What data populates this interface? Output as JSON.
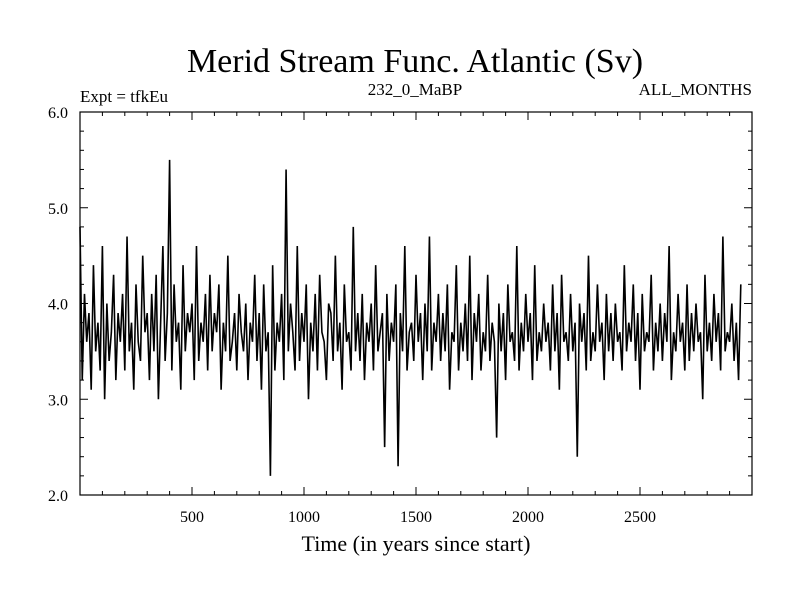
{
  "chart_data": {
    "type": "line",
    "title": "Merid Stream Func. Atlantic (Sv)",
    "subtitle_left": "Expt = tfkEu",
    "subtitle_center": "232_0_MaBP",
    "subtitle_right": "ALL_MONTHS",
    "xlabel": "Time (in years since start)",
    "ylabel": "",
    "xlim": [
      0,
      3000
    ],
    "ylim": [
      2.0,
      6.0
    ],
    "x_ticks": [
      500,
      1000,
      1500,
      2000,
      2500
    ],
    "x_tick_labels": [
      "500",
      "1000",
      "1500",
      "2000",
      "2500"
    ],
    "y_ticks": [
      2.0,
      3.0,
      4.0,
      5.0,
      6.0
    ],
    "y_tick_labels": [
      "2.0",
      "3.0",
      "4.0",
      "5.0",
      "6.0"
    ],
    "grid": false,
    "line_color": "#000000",
    "series": [
      {
        "x_start": 0,
        "x_step": 10,
        "values": [
          4.8,
          3.2,
          4.1,
          3.6,
          3.9,
          3.1,
          4.4,
          3.5,
          3.8,
          3.3,
          4.6,
          3.0,
          4.0,
          3.4,
          3.7,
          4.3,
          3.2,
          3.9,
          3.6,
          4.1,
          3.3,
          4.7,
          3.5,
          3.8,
          3.1,
          4.2,
          3.6,
          3.4,
          4.5,
          3.7,
          3.9,
          3.2,
          4.1,
          3.5,
          4.3,
          3.0,
          3.8,
          4.6,
          3.4,
          3.9,
          5.5,
          3.3,
          4.2,
          3.6,
          3.8,
          3.1,
          4.4,
          3.5,
          3.9,
          3.7,
          4.0,
          3.2,
          4.6,
          3.4,
          3.8,
          3.6,
          4.1,
          3.3,
          4.3,
          3.5,
          3.9,
          3.7,
          4.2,
          3.1,
          3.8,
          3.5,
          4.5,
          3.4,
          3.6,
          3.9,
          3.3,
          4.1,
          3.7,
          3.5,
          4.0,
          3.2,
          3.8,
          3.6,
          4.3,
          3.4,
          3.9,
          3.1,
          4.2,
          3.5,
          3.7,
          2.2,
          4.4,
          3.3,
          3.8,
          3.6,
          4.1,
          3.2,
          5.4,
          3.5,
          4.0,
          3.7,
          3.3,
          4.6,
          3.4,
          3.9,
          3.6,
          4.2,
          3.0,
          3.8,
          3.5,
          4.1,
          3.3,
          4.3,
          3.7,
          3.6,
          3.2,
          4.0,
          3.9,
          3.4,
          4.5,
          3.5,
          3.8,
          3.1,
          4.2,
          3.6,
          3.7,
          3.3,
          4.8,
          3.5,
          3.9,
          3.4,
          4.1,
          3.2,
          3.8,
          3.6,
          4.0,
          3.3,
          4.4,
          3.5,
          3.7,
          3.9,
          2.5,
          4.1,
          3.4,
          3.8,
          3.6,
          4.2,
          2.3,
          3.9,
          3.5,
          4.6,
          3.3,
          3.7,
          3.8,
          3.4,
          4.3,
          3.6,
          3.9,
          3.2,
          4.0,
          3.5,
          4.7,
          3.3,
          3.8,
          3.6,
          4.1,
          3.4,
          3.9,
          3.5,
          4.2,
          3.1,
          3.7,
          3.6,
          4.4,
          3.3,
          3.8,
          3.5,
          4.0,
          3.4,
          4.5,
          3.2,
          3.9,
          3.6,
          4.1,
          3.3,
          3.7,
          3.5,
          4.3,
          3.4,
          3.8,
          3.6,
          2.6,
          4.0,
          3.5,
          3.9,
          3.2,
          4.2,
          3.6,
          3.7,
          3.4,
          4.6,
          3.3,
          3.8,
          3.5,
          4.1,
          3.6,
          3.9,
          3.2,
          4.4,
          3.4,
          3.7,
          3.5,
          4.0,
          3.6,
          3.8,
          3.3,
          4.2,
          3.5,
          3.9,
          3.1,
          4.3,
          3.6,
          3.7,
          3.4,
          4.1,
          3.5,
          3.8,
          2.4,
          4.0,
          3.6,
          3.9,
          3.3,
          4.5,
          3.4,
          3.7,
          3.5,
          4.2,
          3.6,
          3.8,
          3.2,
          4.1,
          3.5,
          3.9,
          3.4,
          4.0,
          3.6,
          3.7,
          3.3,
          4.4,
          3.5,
          3.8,
          3.6,
          4.2,
          3.4,
          3.9,
          3.1,
          4.1,
          3.5,
          3.7,
          3.6,
          4.3,
          3.3,
          3.8,
          3.5,
          4.0,
          3.4,
          3.9,
          3.6,
          4.6,
          3.2,
          3.7,
          3.5,
          4.1,
          3.6,
          3.8,
          3.3,
          4.2,
          3.4,
          3.9,
          3.5,
          4.0,
          3.6,
          3.7,
          3.0,
          4.3,
          3.5,
          3.8,
          3.4,
          4.1,
          3.6,
          3.9,
          3.3,
          4.7,
          3.5,
          3.7,
          3.6,
          4.0,
          3.4,
          3.8,
          3.2,
          4.2
        ]
      }
    ]
  }
}
